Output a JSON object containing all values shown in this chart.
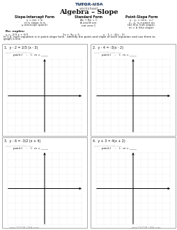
{
  "bg_color": "#ffffff",
  "border_color": "#888888",
  "grid_color": "#bbbbbb",
  "axis_color": "#000000",
  "text_color": "#111111",
  "title": "Algebra – Slope",
  "table_headers": [
    "Slope-Intercept Form",
    "Standard Form",
    "Point-Slope Form"
  ],
  "col1_eq": "y = mx + b",
  "col1_desc1": "m is slope, b is",
  "col1_desc2": "y-intercept (point)",
  "col2_eq": "Ax + Bx = C",
  "col2_desc1": "A and B are",
  "col2_desc2": "not zero C",
  "col3_eq": "y - y₁ = m(x - x₁)",
  "col3_desc1": "x₁, y₁ is a point on",
  "col3_desc2": "the line (not slope),",
  "col3_desc3": "m = b (the slope)",
  "re_label": "Re: exples:",
  "ex1": "y = -2/3 x + 5/3",
  "ex2": "2x + 3y = 5",
  "ex3": "y - 1 = -4(x - 2)",
  "instr1": "In 1-4, each equation is in point-slope form.  Identify the point and slope of each equation and use them to",
  "instr2": "graph a line.",
  "problems": [
    {
      "num": "1.",
      "eq": "y - 2 = 2/3 (x - 3)",
      "point_label": "point:(    ,    );  m ="
    },
    {
      "num": "2.",
      "eq": "y - 4 = -3(x - 2)",
      "point_label": "point:(    ,    );  m ="
    },
    {
      "num": "3.",
      "eq": "y - 6 = -3/2 (x + 4)",
      "point_label": "point:(    ,    );  m ="
    },
    {
      "num": "4.",
      "eq": "y + 3 = 4(x + 2)",
      "point_label": "point:(    ,    );  m ="
    }
  ],
  "watermark": "www.TUTOR-USA.com",
  "footer_left": "www.TUTOR-USA.com",
  "footer_right": "www.TUTOR-USA.com"
}
